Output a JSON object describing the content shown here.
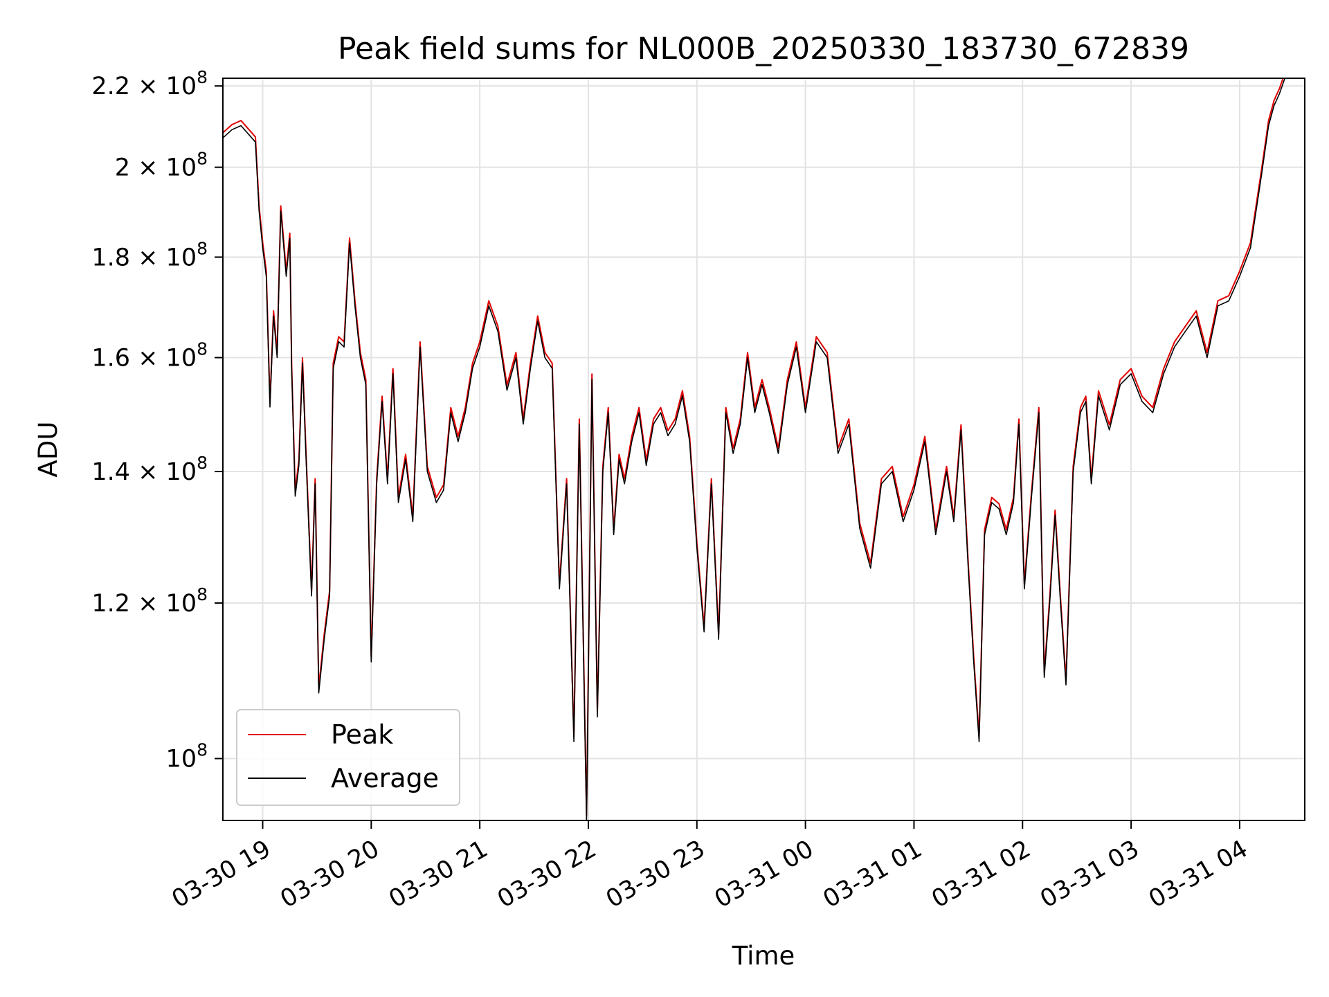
{
  "chart_data": {
    "type": "line",
    "title": "Peak field sums for NL000B_20250330_183730_672839",
    "xlabel": "Time",
    "ylabel": "ADU",
    "yscale": "log",
    "ylim": [
      93000000,
      222000000
    ],
    "xlim": [
      "2025-03-30T18:38",
      "2025-03-31T04:36"
    ],
    "grid": true,
    "legend_position": "lower-left",
    "x_ticks": [
      {
        "t": "2025-03-30T19:00",
        "label": "03-30 19"
      },
      {
        "t": "2025-03-30T20:00",
        "label": "03-30 20"
      },
      {
        "t": "2025-03-30T21:00",
        "label": "03-30 21"
      },
      {
        "t": "2025-03-30T22:00",
        "label": "03-30 22"
      },
      {
        "t": "2025-03-30T23:00",
        "label": "03-30 23"
      },
      {
        "t": "2025-03-31T00:00",
        "label": "03-31 00"
      },
      {
        "t": "2025-03-31T01:00",
        "label": "03-31 01"
      },
      {
        "t": "2025-03-31T02:00",
        "label": "03-31 02"
      },
      {
        "t": "2025-03-31T03:00",
        "label": "03-31 03"
      },
      {
        "t": "2025-03-31T04:00",
        "label": "03-31 04"
      }
    ],
    "y_ticks": [
      {
        "value": 100000000,
        "mantissa": "",
        "exp": "8"
      },
      {
        "value": 120000000,
        "mantissa": "1.2",
        "exp": "8"
      },
      {
        "value": 140000000,
        "mantissa": "1.4",
        "exp": "8"
      },
      {
        "value": 160000000,
        "mantissa": "1.6",
        "exp": "8"
      },
      {
        "value": 180000000,
        "mantissa": "1.8",
        "exp": "8"
      },
      {
        "value": 200000000,
        "mantissa": "2",
        "exp": "8"
      },
      {
        "value": 220000000,
        "mantissa": "2.2",
        "exp": "8"
      }
    ],
    "series": [
      {
        "name": "Peak",
        "color": "#e00000",
        "offset_ratio": 1.006
      },
      {
        "name": "Average",
        "color": "#000000"
      }
    ],
    "x": [
      "2025-03-30T18:38",
      "2025-03-30T18:43",
      "2025-03-30T18:48",
      "2025-03-30T18:52",
      "2025-03-30T18:56",
      "2025-03-30T18:58",
      "2025-03-30T19:00",
      "2025-03-30T19:02",
      "2025-03-30T19:04",
      "2025-03-30T19:06",
      "2025-03-30T19:08",
      "2025-03-30T19:10",
      "2025-03-30T19:13",
      "2025-03-30T19:15",
      "2025-03-30T19:16",
      "2025-03-30T19:18",
      "2025-03-30T19:20",
      "2025-03-30T19:22",
      "2025-03-30T19:24",
      "2025-03-30T19:27",
      "2025-03-30T19:29",
      "2025-03-30T19:31",
      "2025-03-30T19:34",
      "2025-03-30T19:37",
      "2025-03-30T19:39",
      "2025-03-30T19:42",
      "2025-03-30T19:45",
      "2025-03-30T19:48",
      "2025-03-30T19:51",
      "2025-03-30T19:54",
      "2025-03-30T19:57",
      "2025-03-30T20:00",
      "2025-03-30T20:03",
      "2025-03-30T20:06",
      "2025-03-30T20:09",
      "2025-03-30T20:12",
      "2025-03-30T20:15",
      "2025-03-30T20:19",
      "2025-03-30T20:23",
      "2025-03-30T20:27",
      "2025-03-30T20:31",
      "2025-03-30T20:36",
      "2025-03-30T20:40",
      "2025-03-30T20:44",
      "2025-03-30T20:48",
      "2025-03-30T20:52",
      "2025-03-30T20:56",
      "2025-03-30T21:00",
      "2025-03-30T21:05",
      "2025-03-30T21:10",
      "2025-03-30T21:15",
      "2025-03-30T21:20",
      "2025-03-30T21:24",
      "2025-03-30T21:28",
      "2025-03-30T21:32",
      "2025-03-30T21:36",
      "2025-03-30T21:40",
      "2025-03-30T21:44",
      "2025-03-30T21:48",
      "2025-03-30T21:52",
      "2025-03-30T21:55",
      "2025-03-30T21:59",
      "2025-03-30T22:02",
      "2025-03-30T22:05",
      "2025-03-30T22:08",
      "2025-03-30T22:11",
      "2025-03-30T22:14",
      "2025-03-30T22:17",
      "2025-03-30T22:20",
      "2025-03-30T22:24",
      "2025-03-30T22:28",
      "2025-03-30T22:32",
      "2025-03-30T22:36",
      "2025-03-30T22:40",
      "2025-03-30T22:44",
      "2025-03-30T22:48",
      "2025-03-30T22:52",
      "2025-03-30T22:56",
      "2025-03-30T23:00",
      "2025-03-30T23:04",
      "2025-03-30T23:08",
      "2025-03-30T23:12",
      "2025-03-30T23:16",
      "2025-03-30T23:20",
      "2025-03-30T23:24",
      "2025-03-30T23:28",
      "2025-03-30T23:32",
      "2025-03-30T23:36",
      "2025-03-30T23:40",
      "2025-03-30T23:45",
      "2025-03-30T23:50",
      "2025-03-30T23:55",
      "2025-03-31T00:00",
      "2025-03-31T00:06",
      "2025-03-31T00:12",
      "2025-03-31T00:18",
      "2025-03-31T00:24",
      "2025-03-31T00:30",
      "2025-03-31T00:36",
      "2025-03-31T00:42",
      "2025-03-31T00:48",
      "2025-03-31T00:54",
      "2025-03-31T01:00",
      "2025-03-31T01:06",
      "2025-03-31T01:12",
      "2025-03-31T01:18",
      "2025-03-31T01:22",
      "2025-03-31T01:26",
      "2025-03-31T01:30",
      "2025-03-31T01:33",
      "2025-03-31T01:36",
      "2025-03-31T01:39",
      "2025-03-31T01:43",
      "2025-03-31T01:47",
      "2025-03-31T01:51",
      "2025-03-31T01:55",
      "2025-03-31T01:58",
      "2025-03-31T02:01",
      "2025-03-31T02:05",
      "2025-03-31T02:09",
      "2025-03-31T02:12",
      "2025-03-31T02:15",
      "2025-03-31T02:18",
      "2025-03-31T02:21",
      "2025-03-31T02:24",
      "2025-03-31T02:28",
      "2025-03-31T02:32",
      "2025-03-31T02:35",
      "2025-03-31T02:38",
      "2025-03-31T02:42",
      "2025-03-31T02:48",
      "2025-03-31T02:54",
      "2025-03-31T03:00",
      "2025-03-31T03:06",
      "2025-03-31T03:12",
      "2025-03-31T03:18",
      "2025-03-31T03:24",
      "2025-03-31T03:30",
      "2025-03-31T03:36",
      "2025-03-31T03:42",
      "2025-03-31T03:48",
      "2025-03-31T03:54",
      "2025-03-31T04:00",
      "2025-03-31T04:06",
      "2025-03-31T04:12",
      "2025-03-31T04:16",
      "2025-03-31T04:19",
      "2025-03-31T04:22",
      "2025-03-31T04:25",
      "2025-03-31T04:28",
      "2025-03-31T04:31",
      "2025-03-31T04:36"
    ],
    "average": [
      207000000,
      209000000,
      210000000,
      208000000,
      206000000,
      190000000,
      182000000,
      176000000,
      151000000,
      168000000,
      160000000,
      190000000,
      176000000,
      184000000,
      158000000,
      136000000,
      141000000,
      159000000,
      142000000,
      121000000,
      138000000,
      108000000,
      115000000,
      121000000,
      158000000,
      163000000,
      162000000,
      183000000,
      170000000,
      160000000,
      155000000,
      112000000,
      138000000,
      152000000,
      138000000,
      157000000,
      135000000,
      142000000,
      132000000,
      162000000,
      140000000,
      135000000,
      137000000,
      150000000,
      145000000,
      150000000,
      158000000,
      162000000,
      170000000,
      165000000,
      154000000,
      160000000,
      148000000,
      158000000,
      167000000,
      160000000,
      158000000,
      122000000,
      138000000,
      102000000,
      148000000,
      93000000,
      156000000,
      105000000,
      140000000,
      150000000,
      130000000,
      142000000,
      138000000,
      145000000,
      150000000,
      141000000,
      148000000,
      150000000,
      146000000,
      148000000,
      153000000,
      145000000,
      128000000,
      116000000,
      138000000,
      115000000,
      150000000,
      143000000,
      148000000,
      160000000,
      150000000,
      155000000,
      150000000,
      143000000,
      155000000,
      162000000,
      150000000,
      163000000,
      160000000,
      143000000,
      148000000,
      131000000,
      125000000,
      138000000,
      140000000,
      132000000,
      137000000,
      145000000,
      130000000,
      140000000,
      132000000,
      147000000,
      125000000,
      112000000,
      102000000,
      130000000,
      135000000,
      134000000,
      130000000,
      135000000,
      148000000,
      122000000,
      136000000,
      150000000,
      110000000,
      120000000,
      133000000,
      120000000,
      109000000,
      140000000,
      150000000,
      152000000,
      138000000,
      153000000,
      147000000,
      155000000,
      157000000,
      152000000,
      150000000,
      157000000,
      162000000,
      165000000,
      168000000,
      160000000,
      170000000,
      171000000,
      176000000,
      182000000,
      198000000,
      210000000,
      215000000,
      218000000,
      222000000
    ]
  },
  "legend": {
    "peak_label": "Peak",
    "average_label": "Average"
  }
}
